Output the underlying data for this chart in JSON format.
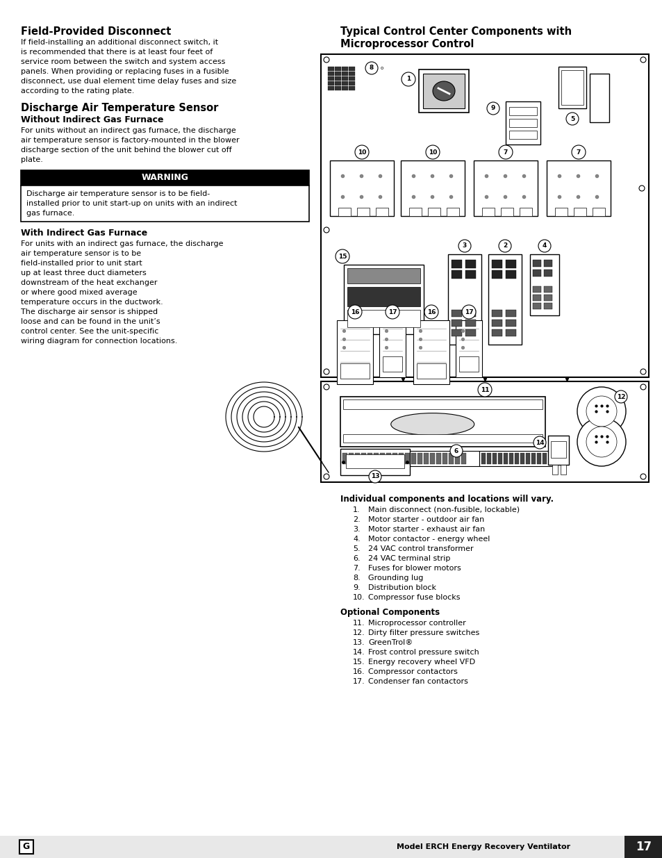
{
  "page_background": "#ffffff",
  "sections": {
    "field_disconnect_title": "Field-Provided Disconnect",
    "field_disconnect_body": [
      "If field-installing an additional disconnect switch, it",
      "is recommended that there is at least four feet of",
      "service room between the switch and system access",
      "panels. When providing or replacing fuses in a fusible",
      "disconnect, use dual element time delay fuses and size",
      "according to the rating plate."
    ],
    "discharge_title": "Discharge Air Temperature Sensor",
    "without_subtitle": "Without Indirect Gas Furnace",
    "without_body": [
      "For units without an indirect gas furnace, the discharge",
      "air temperature sensor is factory-mounted in the blower",
      "discharge section of the unit behind the blower cut off",
      "plate."
    ],
    "warning_header": "WARNING",
    "warning_body": [
      "Discharge air temperature sensor is to be field-",
      "installed prior to unit start-up on units with an indirect",
      "gas furnace."
    ],
    "with_subtitle": "With Indirect Gas Furnace",
    "with_body": [
      "For units with an indirect gas furnace, the discharge",
      "air temperature sensor is to be",
      "field-installed prior to unit start",
      "up at least three duct diameters",
      "downstream of the heat exchanger",
      "or where good mixed average",
      "temperature occurs in the ductwork.",
      "The discharge air sensor is shipped",
      "loose and can be found in the unit’s",
      "control center. See the unit-specific",
      "wiring diagram for connection locations."
    ],
    "right_title_line1": "Typical Control Center Components with",
    "right_title_line2": "Microprocessor Control",
    "components_title": "Individual components and locations will vary.",
    "components_list": [
      "Main disconnect (non-fusible, lockable)",
      "Motor starter - outdoor air fan",
      "Motor starter - exhaust air fan",
      "Motor contactor - energy wheel",
      "24 VAC control transformer",
      "24 VAC terminal strip",
      "Fuses for blower motors",
      "Grounding lug",
      "Distribution block",
      "Compressor fuse blocks"
    ],
    "optional_title": "Optional Components",
    "optional_list": [
      "Microprocessor controller",
      "Dirty filter pressure switches",
      "GreenTrol®",
      "Frost control pressure switch",
      "Energy recovery wheel VFD",
      "Compressor contactors",
      "Condenser fan contactors"
    ]
  },
  "footer_text": "Model ERCH Energy Recovery Ventilator",
  "page_number": "17"
}
